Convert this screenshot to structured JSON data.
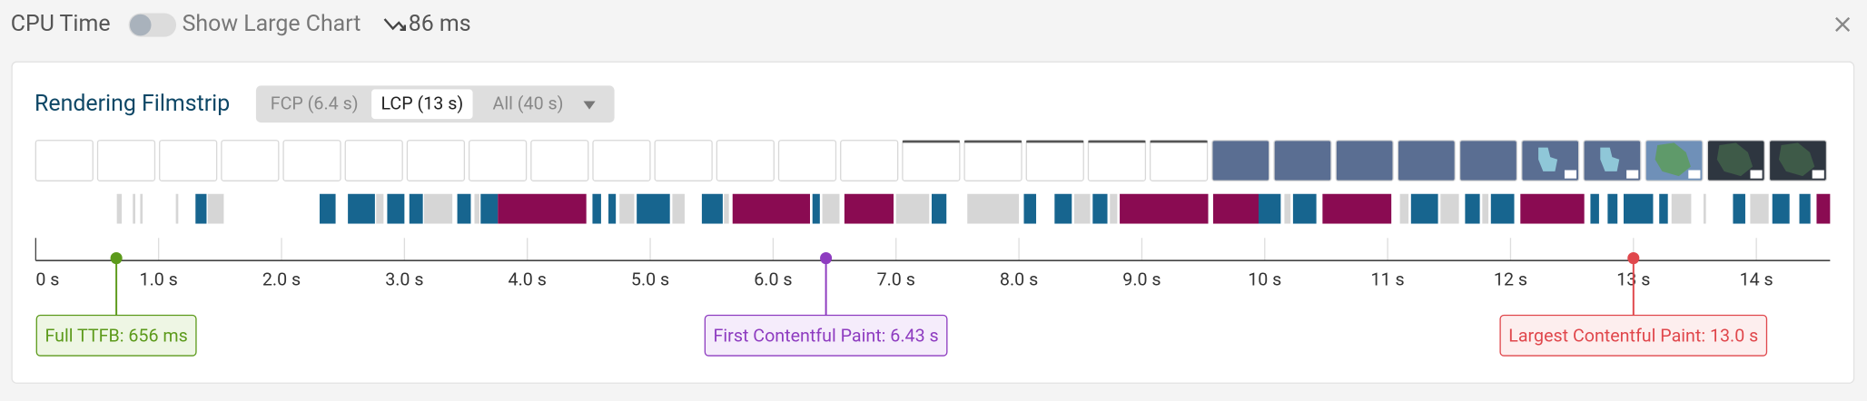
{
  "header": {
    "title": "CPU Time",
    "toggle_label": "Show Large Chart",
    "cpu_value": "86 ms"
  },
  "filmstrip": {
    "title": "Rendering Filmstrip",
    "tabs": [
      "FCP (6.4 s)",
      "LCP (13 s)",
      "All (40 s)"
    ],
    "active_tab": 1
  },
  "timeline": {
    "xlim": [
      0,
      14.6
    ],
    "xticks": [
      {
        "value": 0,
        "label": "0 s"
      },
      {
        "value": 1,
        "label": "1.0 s"
      },
      {
        "value": 2,
        "label": "2.0 s"
      },
      {
        "value": 3,
        "label": "3.0 s"
      },
      {
        "value": 4,
        "label": "4.0 s"
      },
      {
        "value": 5,
        "label": "5.0 s"
      },
      {
        "value": 6,
        "label": "6.0 s"
      },
      {
        "value": 7,
        "label": "7.0 s"
      },
      {
        "value": 8,
        "label": "8.0 s"
      },
      {
        "value": 9,
        "label": "9.0 s"
      },
      {
        "value": 10,
        "label": "10 s"
      },
      {
        "value": 11,
        "label": "11 s"
      },
      {
        "value": 12,
        "label": "12 s"
      },
      {
        "value": 13,
        "label": "13 s"
      },
      {
        "value": 14,
        "label": "14 s"
      }
    ],
    "markers": [
      {
        "label": "Full TTFB: 656 ms",
        "value": 0.656,
        "color": "#5c9a1b",
        "fill": "#eef6e4"
      },
      {
        "label": "First Contentful Paint: 6.43 s",
        "value": 6.43,
        "color": "#8e3cc0",
        "fill": "#f5ecfb"
      },
      {
        "label": "Largest Contentful Paint: 13.0 s",
        "value": 13.0,
        "color": "#e0474c",
        "fill": "#fdeeee"
      }
    ],
    "activity": [
      {
        "color": "#d6d6d6",
        "segments": [
          [
            0.66,
            0.7
          ],
          [
            0.79,
            0.81
          ],
          [
            0.85,
            0.87
          ],
          [
            1.14,
            1.16
          ],
          [
            1.4,
            1.53
          ],
          [
            2.77,
            2.83
          ],
          [
            3.16,
            3.39
          ],
          [
            3.57,
            3.61
          ],
          [
            4.75,
            4.87
          ],
          [
            5.18,
            5.28
          ],
          [
            5.6,
            5.64
          ],
          [
            6.4,
            6.54
          ],
          [
            7.0,
            7.27
          ],
          [
            7.58,
            8.0
          ],
          [
            8.45,
            8.58
          ],
          [
            8.74,
            8.8
          ],
          [
            10.16,
            10.21
          ],
          [
            11.1,
            11.17
          ],
          [
            11.43,
            11.58
          ],
          [
            11.77,
            11.82
          ],
          [
            13.31,
            13.47
          ],
          [
            13.57,
            13.59
          ],
          [
            13.95,
            14.1
          ]
        ]
      },
      {
        "color": "#17658f",
        "segments": [
          [
            1.3,
            1.39
          ],
          [
            2.31,
            2.44
          ],
          [
            2.54,
            2.76
          ],
          [
            2.86,
            3.0
          ],
          [
            3.04,
            3.15
          ],
          [
            3.43,
            3.54
          ],
          [
            3.62,
            3.76
          ],
          [
            4.53,
            4.6
          ],
          [
            4.66,
            4.72
          ],
          [
            4.89,
            5.16
          ],
          [
            5.42,
            5.59
          ],
          [
            6.32,
            6.38
          ],
          [
            7.29,
            7.41
          ],
          [
            8.04,
            8.14
          ],
          [
            8.29,
            8.43
          ],
          [
            8.6,
            8.72
          ],
          [
            9.95,
            10.13
          ],
          [
            10.23,
            10.42
          ],
          [
            11.19,
            11.41
          ],
          [
            11.63,
            11.75
          ],
          [
            11.84,
            12.03
          ],
          [
            12.65,
            12.72
          ],
          [
            12.79,
            12.87
          ],
          [
            12.92,
            13.16
          ],
          [
            13.21,
            13.28
          ],
          [
            13.81,
            13.91
          ],
          [
            14.13,
            14.27
          ],
          [
            14.35,
            14.44
          ]
        ]
      },
      {
        "color": "#8a0b52",
        "segments": [
          [
            3.76,
            4.48
          ],
          [
            5.67,
            6.3
          ],
          [
            6.58,
            6.98
          ],
          [
            8.82,
            9.54
          ],
          [
            9.58,
            9.95
          ],
          [
            10.47,
            11.03
          ],
          [
            12.08,
            12.6
          ],
          [
            14.49,
            14.6
          ]
        ]
      }
    ]
  }
}
